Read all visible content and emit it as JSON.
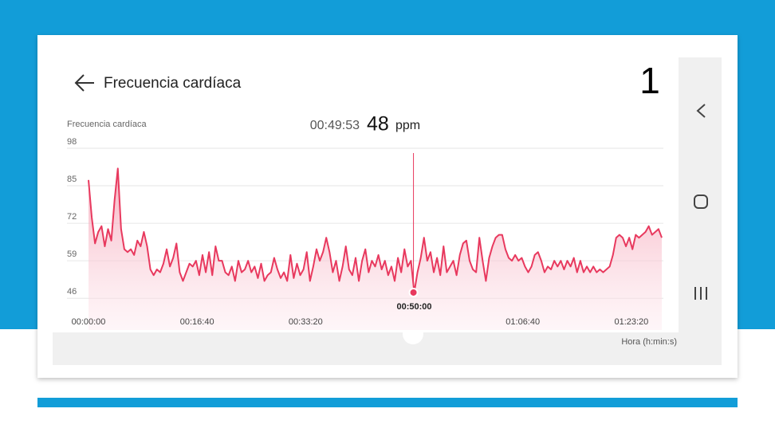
{
  "header": {
    "title": "Frecuencia cardíaca",
    "step": "1"
  },
  "chart_data": {
    "type": "line",
    "ylabel": "Frecuencia cardíaca",
    "xlabel": "Hora (h:min:s)",
    "color": "#e8395e",
    "grid": true,
    "ylim": [
      35,
      98
    ],
    "yticks": [
      46,
      59,
      72,
      85,
      98
    ],
    "xlim": [
      0,
      5280
    ],
    "xticks": [
      {
        "value": 0,
        "label": "00:00:00"
      },
      {
        "value": 1000,
        "label": "00:16:40"
      },
      {
        "value": 2000,
        "label": "00:33:20"
      },
      {
        "value": 3000,
        "label": "00:50:00"
      },
      {
        "value": 4000,
        "label": "01:06:40"
      },
      {
        "value": 5000,
        "label": "01:23:20"
      }
    ],
    "cursor": {
      "time": {
        "value": 2993,
        "label": "00:49:53"
      },
      "value": 48,
      "unit": "ppm"
    },
    "x": [
      0,
      30,
      60,
      90,
      120,
      150,
      180,
      210,
      240,
      270,
      300,
      330,
      360,
      390,
      420,
      450,
      480,
      510,
      540,
      570,
      600,
      630,
      660,
      690,
      720,
      750,
      780,
      810,
      840,
      870,
      900,
      930,
      960,
      990,
      1020,
      1050,
      1080,
      1110,
      1140,
      1170,
      1200,
      1230,
      1260,
      1290,
      1320,
      1350,
      1380,
      1410,
      1440,
      1470,
      1500,
      1530,
      1560,
      1590,
      1620,
      1650,
      1680,
      1710,
      1740,
      1770,
      1800,
      1830,
      1860,
      1890,
      1920,
      1950,
      1980,
      2010,
      2040,
      2070,
      2100,
      2130,
      2160,
      2190,
      2220,
      2250,
      2280,
      2310,
      2340,
      2370,
      2400,
      2430,
      2460,
      2490,
      2520,
      2550,
      2580,
      2610,
      2640,
      2670,
      2700,
      2730,
      2760,
      2790,
      2820,
      2850,
      2880,
      2910,
      2940,
      2970,
      3000,
      3030,
      3060,
      3090,
      3120,
      3150,
      3180,
      3210,
      3240,
      3270,
      3300,
      3330,
      3360,
      3390,
      3420,
      3450,
      3480,
      3510,
      3540,
      3570,
      3600,
      3630,
      3660,
      3690,
      3720,
      3750,
      3780,
      3810,
      3840,
      3870,
      3900,
      3930,
      3960,
      3990,
      4020,
      4050,
      4080,
      4110,
      4140,
      4170,
      4200,
      4230,
      4260,
      4290,
      4320,
      4350,
      4380,
      4410,
      4440,
      4470,
      4500,
      4530,
      4560,
      4590,
      4620,
      4650,
      4680,
      4710,
      4740,
      4770,
      4800,
      4830,
      4860,
      4890,
      4920,
      4950,
      4980,
      5010,
      5040,
      5070,
      5100,
      5130,
      5160,
      5190,
      5220,
      5250,
      5280
    ],
    "values": [
      87,
      74,
      65,
      69,
      71,
      64,
      70,
      66,
      80,
      91,
      70,
      63,
      62,
      63,
      61,
      66,
      64,
      69,
      64,
      56,
      54,
      56,
      55,
      58,
      63,
      57,
      60,
      65,
      55,
      52,
      55,
      58,
      57,
      59,
      54,
      61,
      55,
      62,
      54,
      64,
      59,
      59,
      55,
      54,
      57,
      52,
      59,
      55,
      56,
      59,
      55,
      57,
      53,
      58,
      52,
      54,
      55,
      60,
      56,
      53,
      55,
      52,
      61,
      53,
      58,
      54,
      56,
      62,
      52,
      57,
      63,
      59,
      62,
      67,
      62,
      55,
      59,
      52,
      57,
      64,
      56,
      54,
      60,
      52,
      59,
      63,
      55,
      59,
      57,
      61,
      56,
      59,
      54,
      57,
      52,
      60,
      55,
      63,
      57,
      59,
      48,
      55,
      60,
      67,
      59,
      62,
      55,
      60,
      54,
      64,
      55,
      57,
      59,
      54,
      61,
      65,
      66,
      59,
      56,
      55,
      67,
      59,
      52,
      60,
      64,
      67,
      68,
      68,
      63,
      60,
      59,
      61,
      59,
      60,
      57,
      55,
      57,
      61,
      62,
      59,
      55,
      57,
      56,
      59,
      57,
      59,
      56,
      59,
      57,
      60,
      55,
      59,
      55,
      57,
      55,
      57,
      55,
      56,
      55,
      56,
      57,
      61,
      67,
      68,
      67,
      64,
      67,
      63,
      68,
      67,
      68,
      69,
      71,
      68,
      69,
      70,
      67
    ]
  }
}
